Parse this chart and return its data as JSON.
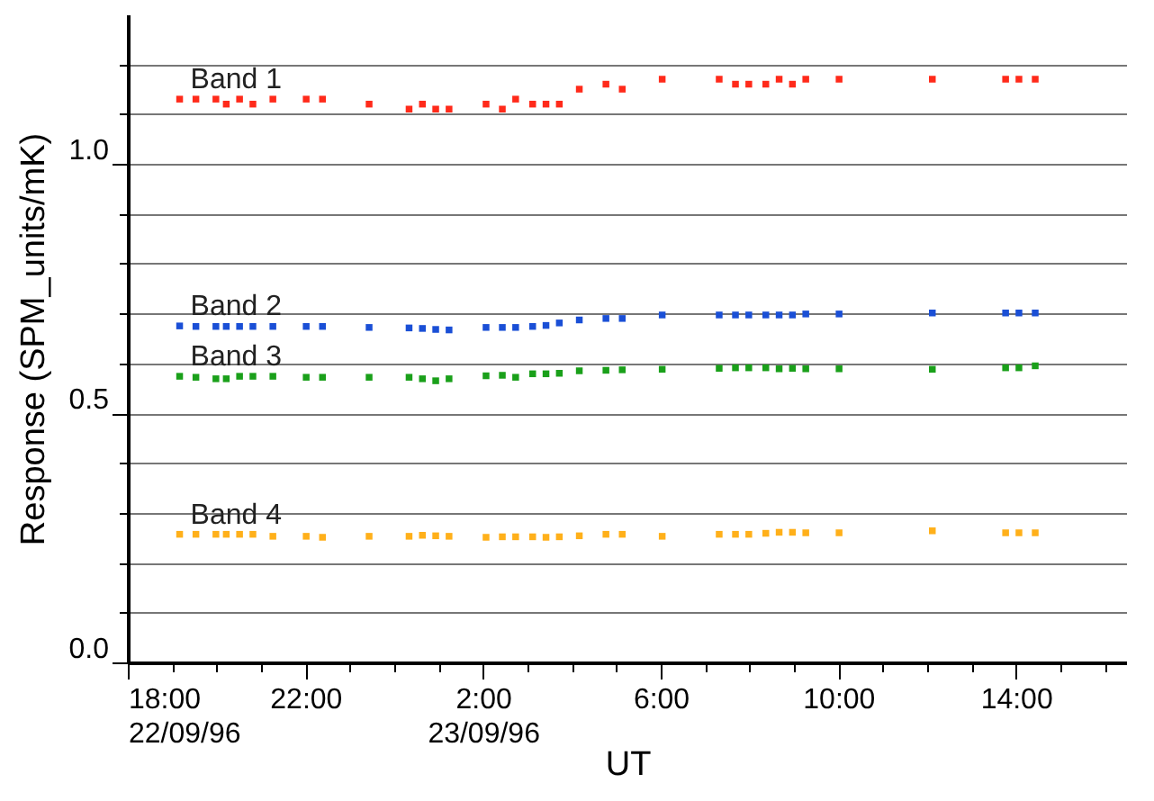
{
  "chart_data": {
    "type": "scatter",
    "xlabel": "UT",
    "ylabel": "Response (SPM_units/mK)",
    "x": [
      "1996-09-22T19:10",
      "1996-09-22T19:32",
      "1996-09-22T19:59",
      "1996-09-22T20:13",
      "1996-09-22T20:31",
      "1996-09-22T20:49",
      "1996-09-22T21:16",
      "1996-09-22T22:01",
      "1996-09-22T22:23",
      "1996-09-22T23:26",
      "1996-09-23T00:20",
      "1996-09-23T00:38",
      "1996-09-23T00:56",
      "1996-09-23T01:14",
      "1996-09-23T02:04",
      "1996-09-23T02:26",
      "1996-09-23T02:44",
      "1996-09-23T03:07",
      "1996-09-23T03:25",
      "1996-09-23T03:43",
      "1996-09-23T04:10",
      "1996-09-23T04:46",
      "1996-09-23T05:08",
      "1996-09-23T06:02",
      "1996-09-23T07:19",
      "1996-09-23T07:41",
      "1996-09-23T07:59",
      "1996-09-23T08:22",
      "1996-09-23T08:40",
      "1996-09-23T08:58",
      "1996-09-23T09:16",
      "1996-09-23T10:01",
      "1996-09-23T12:07",
      "1996-09-23T13:46",
      "1996-09-23T14:04",
      "1996-09-23T14:26"
    ],
    "series": [
      {
        "name": "Band 1",
        "color": "#ff2a1a",
        "values": [
          1.13,
          1.13,
          1.13,
          1.12,
          1.13,
          1.12,
          1.13,
          1.13,
          1.13,
          1.12,
          1.11,
          1.12,
          1.11,
          1.11,
          1.12,
          1.11,
          1.13,
          1.12,
          1.12,
          1.12,
          1.15,
          1.16,
          1.15,
          1.17,
          1.17,
          1.16,
          1.16,
          1.16,
          1.17,
          1.16,
          1.17,
          1.17,
          1.17,
          1.17,
          1.17,
          1.17
        ]
      },
      {
        "name": "Band 2",
        "color": "#1a4fd6",
        "values": [
          0.675,
          0.674,
          0.674,
          0.674,
          0.674,
          0.674,
          0.674,
          0.674,
          0.674,
          0.672,
          0.671,
          0.67,
          0.668,
          0.667,
          0.672,
          0.672,
          0.672,
          0.674,
          0.676,
          0.681,
          0.687,
          0.69,
          0.69,
          0.697,
          0.697,
          0.697,
          0.697,
          0.697,
          0.697,
          0.697,
          0.699,
          0.699,
          0.701,
          0.701,
          0.701,
          0.701
        ]
      },
      {
        "name": "Band 3",
        "color": "#1aa01a",
        "values": [
          0.574,
          0.572,
          0.569,
          0.569,
          0.574,
          0.574,
          0.574,
          0.572,
          0.572,
          0.572,
          0.572,
          0.569,
          0.565,
          0.569,
          0.575,
          0.576,
          0.572,
          0.579,
          0.579,
          0.58,
          0.585,
          0.586,
          0.587,
          0.588,
          0.59,
          0.591,
          0.591,
          0.591,
          0.589,
          0.59,
          0.589,
          0.589,
          0.588,
          0.591,
          0.591,
          0.595
        ]
      },
      {
        "name": "Band 4",
        "color": "#ffb01a",
        "values": [
          0.257,
          0.257,
          0.257,
          0.257,
          0.257,
          0.257,
          0.253,
          0.253,
          0.251,
          0.253,
          0.253,
          0.255,
          0.254,
          0.253,
          0.251,
          0.252,
          0.252,
          0.252,
          0.251,
          0.252,
          0.254,
          0.257,
          0.257,
          0.253,
          0.257,
          0.257,
          0.257,
          0.259,
          0.261,
          0.261,
          0.26,
          0.26,
          0.264,
          0.26,
          0.26,
          0.26
        ]
      }
    ],
    "xlim": [
      "1996-09-22T18:00",
      "1996-09-23T16:30"
    ],
    "xticks": [
      {
        "value": "1996-09-22T18:00",
        "label": "18:00\n22/09/96"
      },
      {
        "value": "1996-09-22T19:00",
        "label": null
      },
      {
        "value": "1996-09-22T20:00",
        "label": null
      },
      {
        "value": "1996-09-22T21:00",
        "label": null
      },
      {
        "value": "1996-09-22T22:00",
        "label": "22:00"
      },
      {
        "value": "1996-09-22T23:00",
        "label": null
      },
      {
        "value": "1996-09-23T00:00",
        "label": null
      },
      {
        "value": "1996-09-23T01:00",
        "label": null
      },
      {
        "value": "1996-09-23T02:00",
        "label": "2:00\n23/09/96"
      },
      {
        "value": "1996-09-23T03:00",
        "label": null
      },
      {
        "value": "1996-09-23T04:00",
        "label": null
      },
      {
        "value": "1996-09-23T05:00",
        "label": null
      },
      {
        "value": "1996-09-23T06:00",
        "label": "6:00"
      },
      {
        "value": "1996-09-23T07:00",
        "label": null
      },
      {
        "value": "1996-09-23T08:00",
        "label": null
      },
      {
        "value": "1996-09-23T09:00",
        "label": null
      },
      {
        "value": "1996-09-23T10:00",
        "label": "10:00"
      },
      {
        "value": "1996-09-23T11:00",
        "label": null
      },
      {
        "value": "1996-09-23T12:00",
        "label": null
      },
      {
        "value": "1996-09-23T13:00",
        "label": null
      },
      {
        "value": "1996-09-23T14:00",
        "label": "14:00"
      },
      {
        "value": "1996-09-23T15:00",
        "label": null
      },
      {
        "value": "1996-09-23T16:00",
        "label": null
      }
    ],
    "ylim": [
      0,
      1.3
    ],
    "yticks": [
      {
        "value": 0,
        "label": "0.0"
      },
      {
        "value": 0.1,
        "label": null
      },
      {
        "value": 0.2,
        "label": null
      },
      {
        "value": 0.3,
        "label": null
      },
      {
        "value": 0.4,
        "label": null
      },
      {
        "value": 0.5,
        "label": "0.5"
      },
      {
        "value": 0.6,
        "label": null
      },
      {
        "value": 0.7,
        "label": null
      },
      {
        "value": 0.8,
        "label": null
      },
      {
        "value": 0.9,
        "label": null
      },
      {
        "value": 1.0,
        "label": "1.0"
      },
      {
        "value": 1.1,
        "label": null
      },
      {
        "value": 1.2,
        "label": null
      }
    ],
    "grid": "y",
    "marker": "square"
  }
}
